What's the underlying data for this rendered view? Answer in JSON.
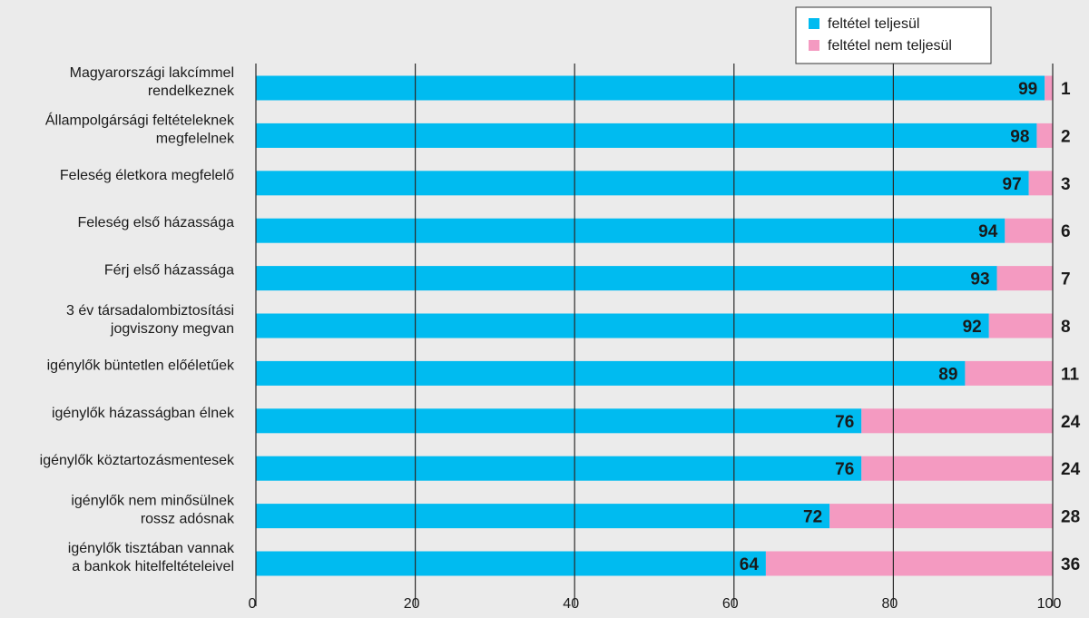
{
  "chart_data": {
    "type": "bar",
    "orientation": "horizontal",
    "stacked": true,
    "categories": [
      [
        "Magyarországi lakcímmel",
        "rendelkeznek"
      ],
      [
        "Állampolgársági feltételeknek",
        "megfelelnek"
      ],
      [
        "Feleség életkora megfelelő"
      ],
      [
        "Feleség első házassága"
      ],
      [
        "Férj első házassága"
      ],
      [
        "3 év társadalombiztosítási",
        "jogviszony megvan"
      ],
      [
        "igénylők büntetlen előéletűek"
      ],
      [
        "igénylők házasságban élnek"
      ],
      [
        "igénylők köztartozásmentesek"
      ],
      [
        "igénylők nem minősülnek",
        "rossz adósnak"
      ],
      [
        "igénylők tisztában vannak",
        "a bankok hitelfeltételeivel"
      ]
    ],
    "series": [
      {
        "name": "feltétel teljesül",
        "color": "#00bbf0",
        "values": [
          99,
          98,
          97,
          94,
          93,
          92,
          89,
          76,
          76,
          72,
          64
        ]
      },
      {
        "name": "feltétel nem teljesül",
        "color": "#f49ac1",
        "values": [
          1,
          2,
          3,
          6,
          7,
          8,
          11,
          24,
          24,
          28,
          36
        ]
      }
    ],
    "xlim": [
      0,
      100
    ],
    "xticks": [
      "0",
      "20",
      "40",
      "60",
      "80",
      "100"
    ],
    "grid": true,
    "legend_position": "top-right"
  }
}
